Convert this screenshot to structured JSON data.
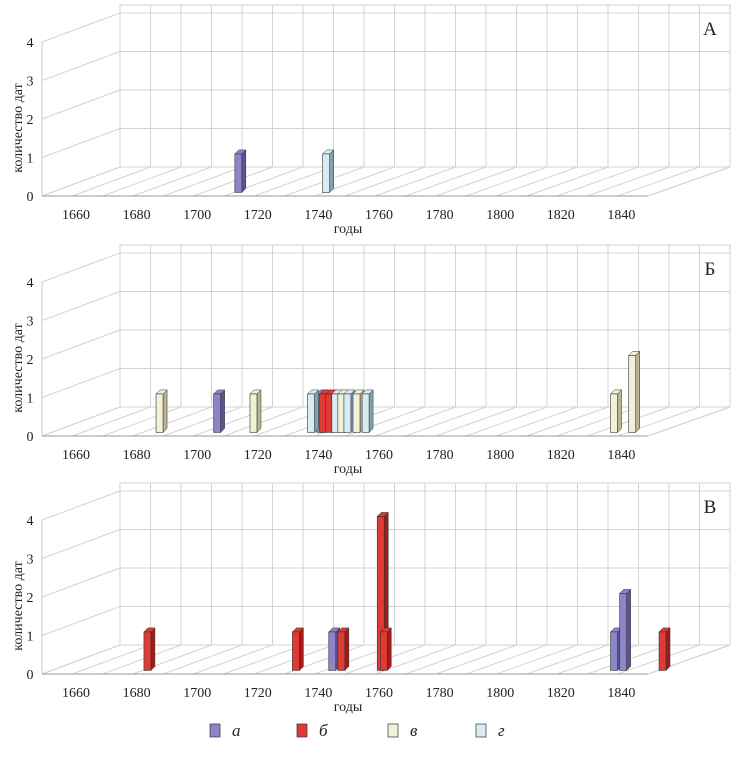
{
  "chart_data": [
    {
      "type": "bar",
      "panel_label": "А",
      "xlabel": "годы",
      "ylabel": "количество дат",
      "x_ticks": [
        1660,
        1680,
        1700,
        1720,
        1740,
        1760,
        1780,
        1800,
        1820,
        1840
      ],
      "y_ticks": [
        0,
        1,
        2,
        3,
        4
      ],
      "ylim": [
        0,
        4
      ],
      "xlim": [
        1660,
        1860
      ],
      "grid": true,
      "bars": [
        {
          "series": "a",
          "x": 1713,
          "value": 1
        },
        {
          "series": "g",
          "x": 1742,
          "value": 1
        }
      ]
    },
    {
      "type": "bar",
      "panel_label": "Б",
      "xlabel": "годы",
      "ylabel": "количество дат",
      "x_ticks": [
        1660,
        1680,
        1700,
        1720,
        1740,
        1760,
        1780,
        1800,
        1820,
        1840
      ],
      "y_ticks": [
        0,
        1,
        2,
        3,
        4
      ],
      "ylim": [
        0,
        4
      ],
      "xlim": [
        1660,
        1860
      ],
      "grid": true,
      "bars": [
        {
          "series": "v",
          "x": 1687,
          "value": 1
        },
        {
          "series": "a",
          "x": 1706,
          "value": 1
        },
        {
          "series": "v",
          "x": 1718,
          "value": 1
        },
        {
          "series": "a",
          "x": 1740,
          "value": 1
        },
        {
          "series": "g",
          "x": 1737,
          "value": 1
        },
        {
          "series": "b",
          "x": 1741,
          "value": 1
        },
        {
          "series": "b",
          "x": 1743,
          "value": 1
        },
        {
          "series": "g",
          "x": 1745,
          "value": 1
        },
        {
          "series": "v",
          "x": 1747,
          "value": 1
        },
        {
          "series": "g",
          "x": 1749,
          "value": 1
        },
        {
          "series": "v",
          "x": 1752,
          "value": 1
        },
        {
          "series": "g",
          "x": 1755,
          "value": 1
        },
        {
          "series": "v",
          "x": 1837,
          "value": 1
        },
        {
          "series": "v",
          "x": 1843,
          "value": 2
        }
      ]
    },
    {
      "type": "bar",
      "panel_label": "В",
      "xlabel": "годы",
      "ylabel": "количество дат",
      "x_ticks": [
        1660,
        1680,
        1700,
        1720,
        1740,
        1760,
        1780,
        1800,
        1820,
        1840
      ],
      "y_ticks": [
        0,
        1,
        2,
        3,
        4
      ],
      "ylim": [
        0,
        4
      ],
      "xlim": [
        1660,
        1860
      ],
      "grid": true,
      "bars": [
        {
          "series": "b",
          "x": 1683,
          "value": 1
        },
        {
          "series": "b",
          "x": 1732,
          "value": 1
        },
        {
          "series": "a",
          "x": 1744,
          "value": 1
        },
        {
          "series": "b",
          "x": 1747,
          "value": 1
        },
        {
          "series": "b",
          "x": 1760,
          "value": 4
        },
        {
          "series": "b",
          "x": 1761,
          "value": 1
        },
        {
          "series": "a",
          "x": 1837,
          "value": 1
        },
        {
          "series": "a",
          "x": 1840,
          "value": 2
        },
        {
          "series": "b",
          "x": 1853,
          "value": 1
        }
      ]
    }
  ],
  "legend": {
    "placement": "bottom",
    "items": [
      {
        "key": "a",
        "label": "а",
        "color": "#8c86c8",
        "side": "#5a5494"
      },
      {
        "key": "b",
        "label": "б",
        "color": "#e03a34",
        "side": "#a31a18"
      },
      {
        "key": "v",
        "label": "в",
        "color": "#f2f0d8",
        "side": "#b9b591"
      },
      {
        "key": "g",
        "label": "г",
        "color": "#d8ecf2",
        "side": "#7fa3ad"
      }
    ]
  }
}
